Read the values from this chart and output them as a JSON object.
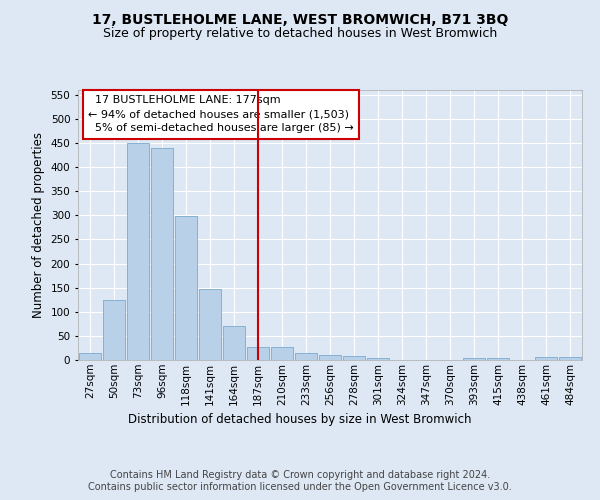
{
  "title": "17, BUSTLEHOLME LANE, WEST BROMWICH, B71 3BQ",
  "subtitle": "Size of property relative to detached houses in West Bromwich",
  "xlabel": "Distribution of detached houses by size in West Bromwich",
  "ylabel": "Number of detached properties",
  "footer_line1": "Contains HM Land Registry data © Crown copyright and database right 2024.",
  "footer_line2": "Contains public sector information licensed under the Open Government Licence v3.0.",
  "categories": [
    "27sqm",
    "50sqm",
    "73sqm",
    "96sqm",
    "118sqm",
    "141sqm",
    "164sqm",
    "187sqm",
    "210sqm",
    "233sqm",
    "256sqm",
    "278sqm",
    "301sqm",
    "324sqm",
    "347sqm",
    "370sqm",
    "393sqm",
    "415sqm",
    "438sqm",
    "461sqm",
    "484sqm"
  ],
  "values": [
    15,
    125,
    450,
    440,
    298,
    147,
    70,
    28,
    28,
    15,
    10,
    8,
    5,
    0,
    0,
    0,
    5,
    5,
    0,
    7,
    7
  ],
  "bar_color": "#b8d0e8",
  "bar_edge_color": "#7aaad0",
  "vline_x_index": 7,
  "vline_color": "#cc0000",
  "annotation_text": "  17 BUSTLEHOLME LANE: 177sqm\n← 94% of detached houses are smaller (1,503)\n  5% of semi-detached houses are larger (85) →",
  "annotation_box_color": "#ffffff",
  "annotation_box_edge_color": "#cc0000",
  "ylim": [
    0,
    560
  ],
  "yticks": [
    0,
    50,
    100,
    150,
    200,
    250,
    300,
    350,
    400,
    450,
    500,
    550
  ],
  "bg_color": "#dde8f4",
  "plot_bg_color": "#dde8f4",
  "grid_color": "#ffffff",
  "title_fontsize": 10,
  "subtitle_fontsize": 9,
  "axis_label_fontsize": 8.5,
  "tick_fontsize": 7.5,
  "footer_fontsize": 7,
  "annotation_fontsize": 8
}
